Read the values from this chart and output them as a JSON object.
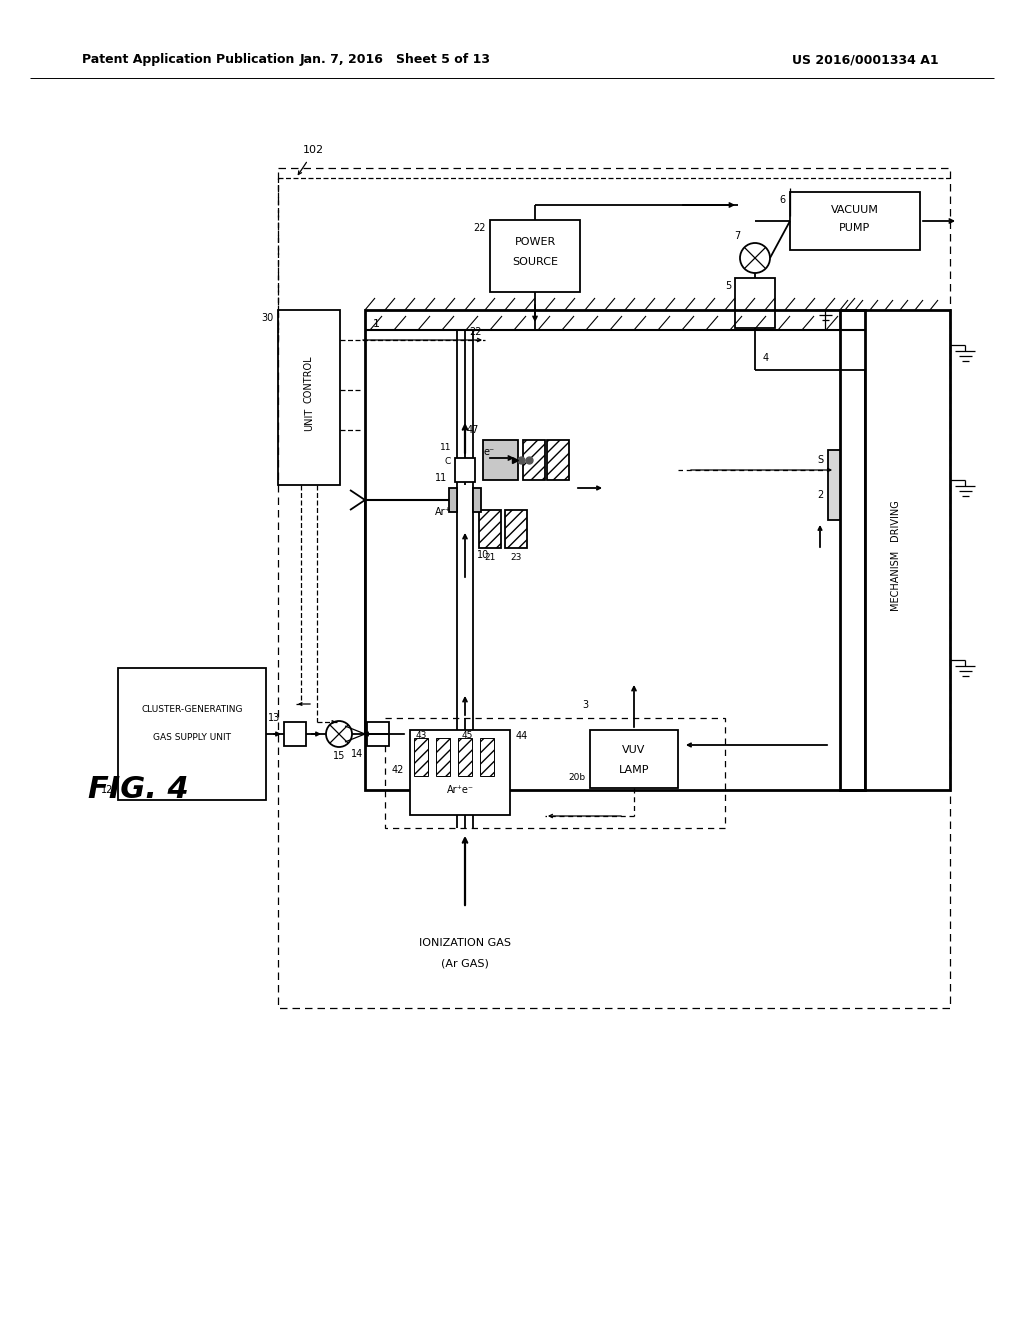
{
  "bg": "#ffffff",
  "header_left": "Patent Application Publication",
  "header_mid": "Jan. 7, 2016   Sheet 5 of 13",
  "header_right": "US 2016/0001334 A1",
  "fig_label": "FIG. 4"
}
